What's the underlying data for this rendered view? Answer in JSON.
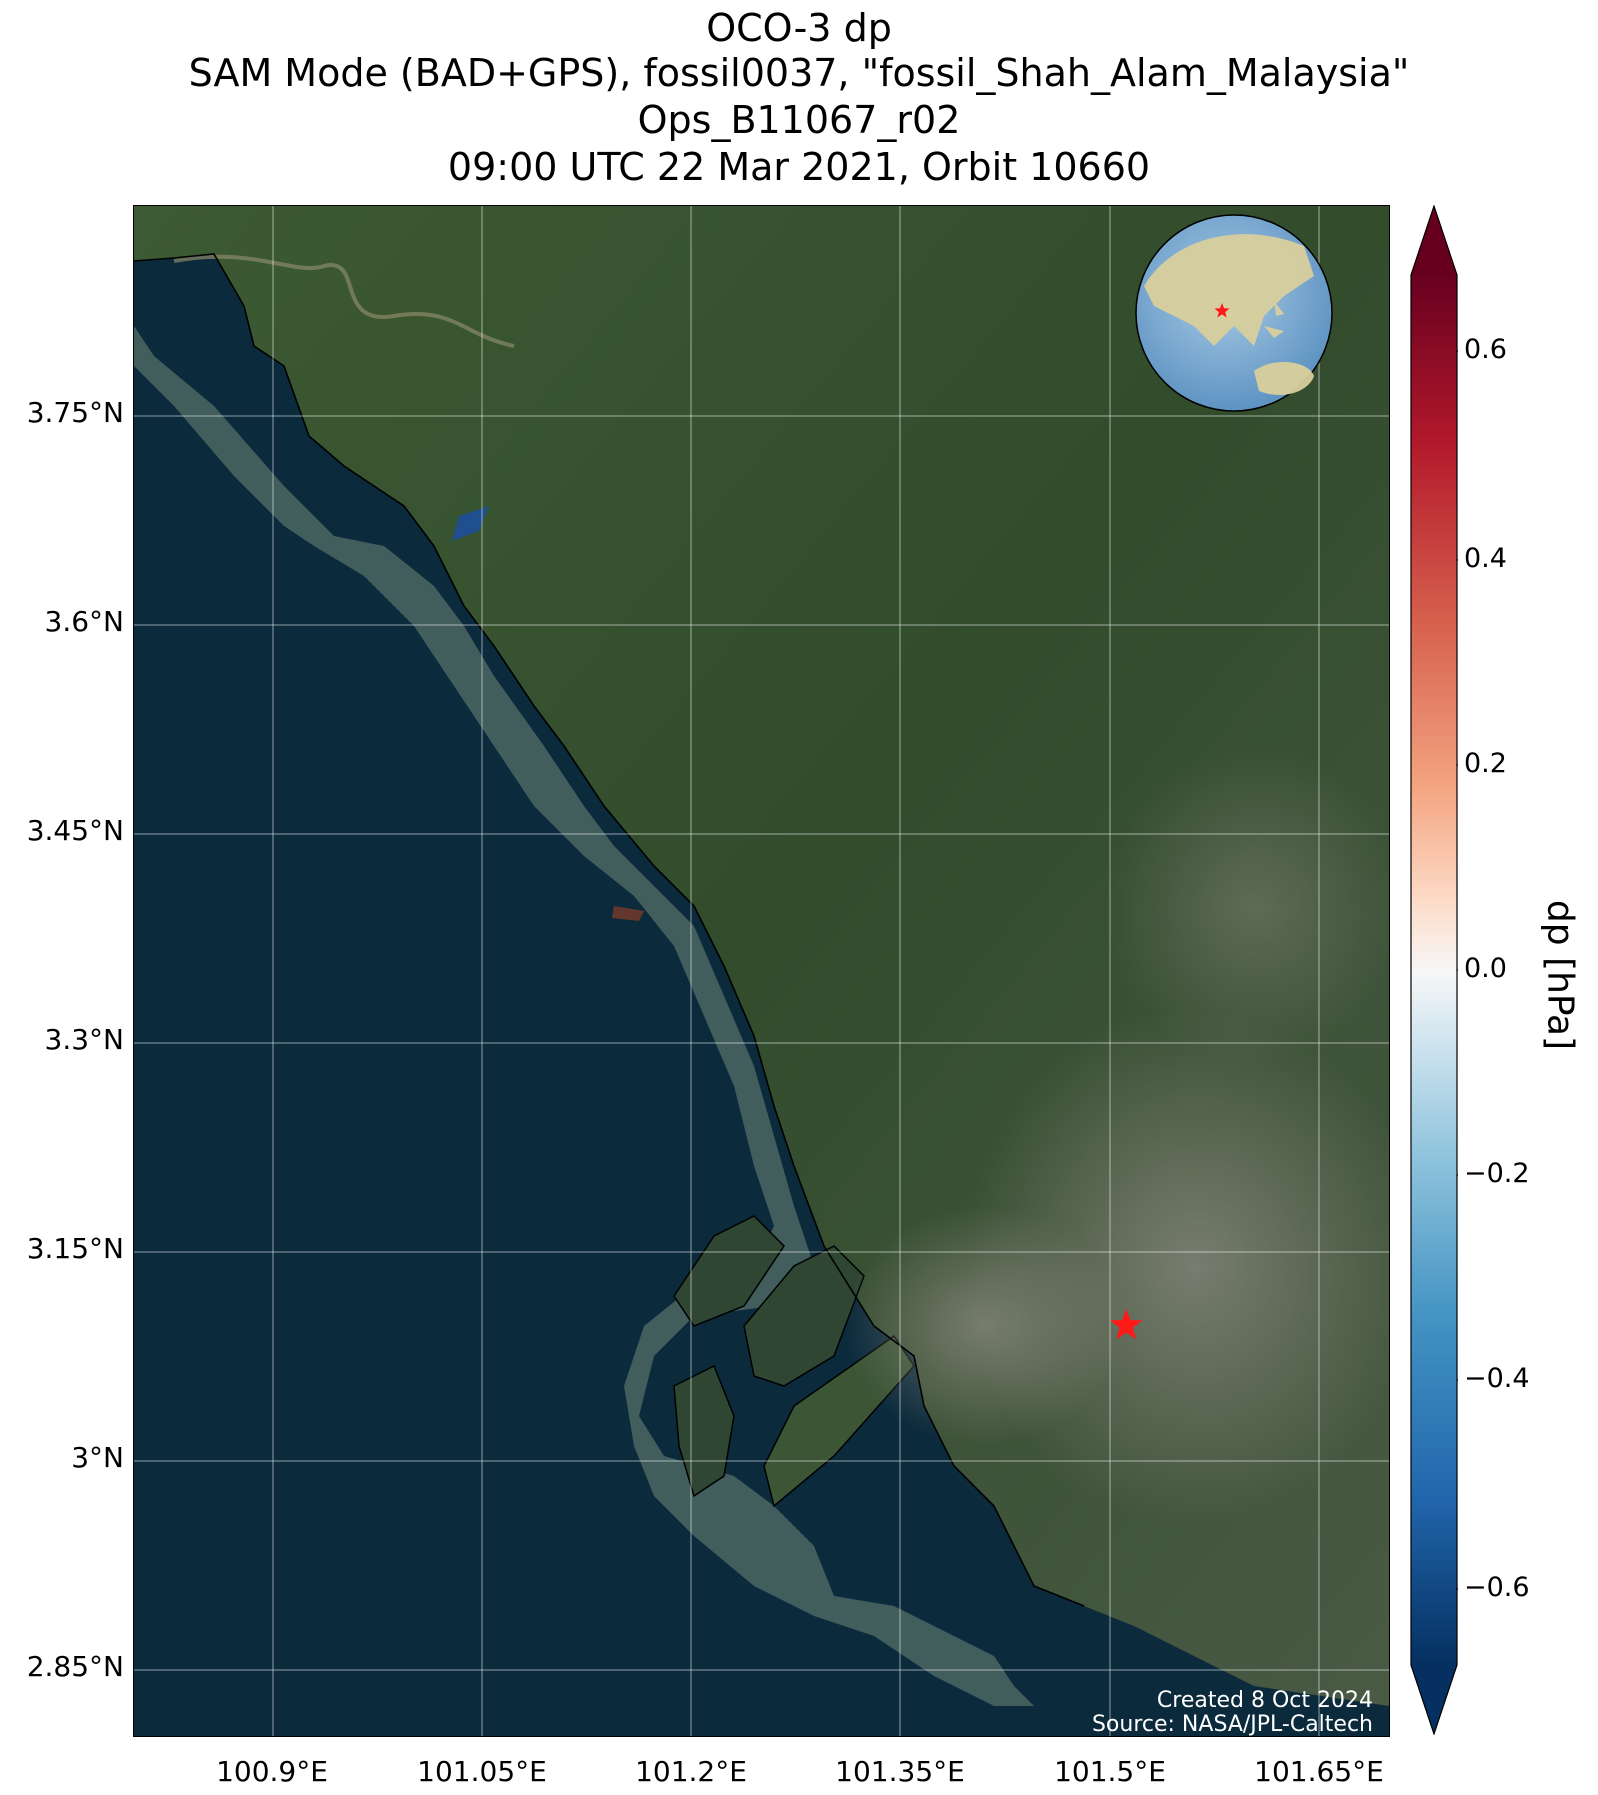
{
  "title": {
    "line1": "OCO-3 dp",
    "line2": "SAM Mode (BAD+GPS), fossil0037, \"fossil_Shah_Alam_Malaysia\"",
    "line3": "Ops_B11067_r02",
    "line4": "09:00 UTC 22 Mar 2021, Orbit 10660"
  },
  "map": {
    "lat_ticks": [
      "3.75°N",
      "3.6°N",
      "3.45°N",
      "3.3°N",
      "3.15°N",
      "3°N",
      "2.85°N"
    ],
    "lon_ticks": [
      "100.9°E",
      "101.05°E",
      "101.2°E",
      "101.35°E",
      "101.5°E",
      "101.65°E"
    ],
    "target_lat": 3.095,
    "target_lon": 101.495,
    "target_marker": "star-icon",
    "inset_marker": "star-icon",
    "credit_line1": "Created 8 Oct 2024",
    "credit_line2": "Source: NASA/JPL-Caltech"
  },
  "colorbar": {
    "label": "dp [hPa]",
    "ticks": [
      "0.6",
      "0.4",
      "0.2",
      "0.0",
      "−0.2",
      "−0.4",
      "−0.6"
    ],
    "range": [
      -0.68,
      0.68
    ],
    "colormap": "RdBu_r",
    "top_color": "#67001f",
    "bottom_color": "#053061"
  },
  "colors": {
    "ocean": "#0b2a3c",
    "land": "#35502b",
    "marker": "#ff1a1a"
  }
}
